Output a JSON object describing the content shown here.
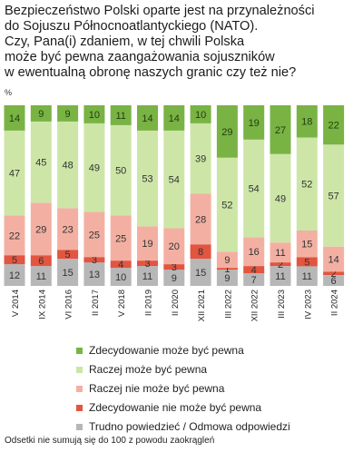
{
  "title_lines": [
    "Bezpieczeństwo Polski oparte jest na przynależności",
    "do Sojuszu Północnoatlantyckiego (NATO).",
    "Czy, Pana(i) zdaniem, w tej chwili Polska",
    "może być pewna zaangażowania sojuszników",
    "w ewentualną obronę naszych granic czy też nie?"
  ],
  "unit_label": "%",
  "footnote": "Odsetki nie sumują się do 100 z powodu zaokrągleń",
  "chart_data": {
    "type": "bar",
    "stacked": true,
    "orientation": "vertical",
    "ylim": [
      0,
      100
    ],
    "categories": [
      "V 2014",
      "IX 2014",
      "VI 2016",
      "II 2017",
      "V 2018",
      "II 2019",
      "II 2020",
      "XII 2021",
      "III 2022",
      "XII 2022",
      "III 2023",
      "IV 2023",
      "II 2024"
    ],
    "series": [
      {
        "name": "Trudno powiedzieć / Odmowa odpowiedzi",
        "color": "#b7b7b7",
        "values": [
          12,
          11,
          15,
          13,
          10,
          11,
          9,
          15,
          9,
          7,
          11,
          11,
          6
        ]
      },
      {
        "name": "Zdecydowanie nie może być pewna",
        "color": "#e25540",
        "values": [
          5,
          6,
          5,
          3,
          4,
          3,
          3,
          8,
          1,
          4,
          2,
          5,
          2
        ]
      },
      {
        "name": "Raczej nie może być pewna",
        "color": "#f3b0a2",
        "values": [
          22,
          29,
          23,
          25,
          25,
          19,
          20,
          28,
          9,
          16,
          11,
          15,
          14
        ]
      },
      {
        "name": "Raczej może być pewna",
        "color": "#cde6a7",
        "values": [
          47,
          45,
          48,
          49,
          50,
          53,
          54,
          39,
          52,
          54,
          49,
          52,
          57
        ]
      },
      {
        "name": "Zdecydowanie może być pewna",
        "color": "#79b344",
        "values": [
          14,
          9,
          9,
          10,
          11,
          14,
          14,
          10,
          29,
          19,
          27,
          18,
          22
        ]
      }
    ],
    "legend_order": [
      4,
      3,
      2,
      1,
      0
    ],
    "legend_position": "bottom"
  }
}
